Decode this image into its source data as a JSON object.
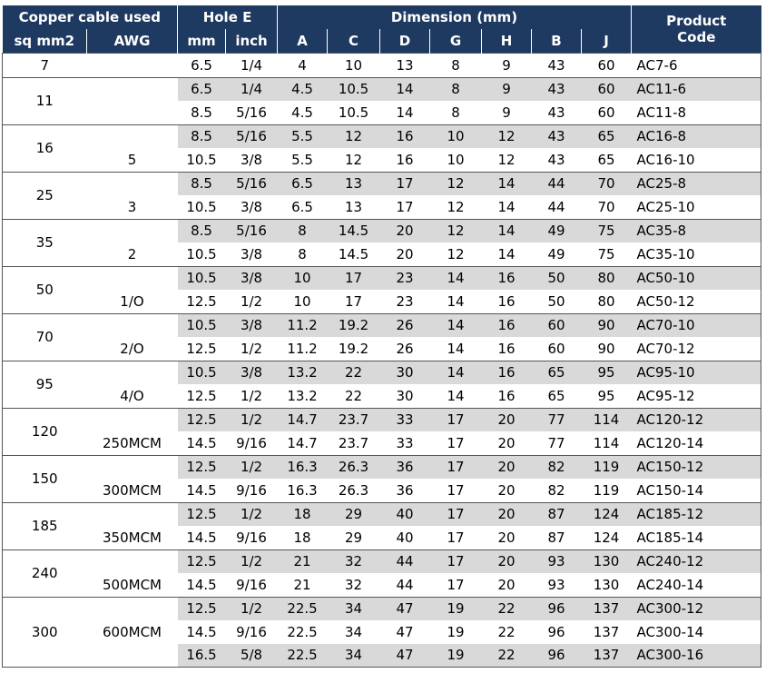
{
  "header": {
    "copper": "Copper cable used",
    "hole": "Hole E",
    "dimension": "Dimension (mm)",
    "product": "Product",
    "code": "Code",
    "columns": [
      "sq mm2",
      "AWG",
      "mm",
      "inch",
      "A",
      "C",
      "D",
      "G",
      "H",
      "B",
      "J"
    ]
  },
  "groups": [
    {
      "sq": "7",
      "rows": [
        [
          "6.5",
          "1/4",
          "4",
          "10",
          "13",
          "8",
          "9",
          "43",
          "60",
          "AC7-6"
        ]
      ]
    },
    {
      "sq": "11",
      "rows": [
        [
          "6.5",
          "1/4",
          "4.5",
          "10.5",
          "14",
          "8",
          "9",
          "43",
          "60",
          "AC11-6"
        ],
        [
          "8.5",
          "5/16",
          "4.5",
          "10.5",
          "14",
          "8",
          "9",
          "43",
          "60",
          "AC11-8"
        ]
      ]
    },
    {
      "sq": "16",
      "awg": "5",
      "rows": [
        [
          "8.5",
          "5/16",
          "5.5",
          "12",
          "16",
          "10",
          "12",
          "43",
          "65",
          "AC16-8"
        ],
        [
          "10.5",
          "3/8",
          "5.5",
          "12",
          "16",
          "10",
          "12",
          "43",
          "65",
          "AC16-10"
        ]
      ]
    },
    {
      "sq": "25",
      "awg": "3",
      "rows": [
        [
          "8.5",
          "5/16",
          "6.5",
          "13",
          "17",
          "12",
          "14",
          "44",
          "70",
          "AC25-8"
        ],
        [
          "10.5",
          "3/8",
          "6.5",
          "13",
          "17",
          "12",
          "14",
          "44",
          "70",
          "AC25-10"
        ]
      ]
    },
    {
      "sq": "35",
      "awg": "2",
      "rows": [
        [
          "8.5",
          "5/16",
          "8",
          "14.5",
          "20",
          "12",
          "14",
          "49",
          "75",
          "AC35-8"
        ],
        [
          "10.5",
          "3/8",
          "8",
          "14.5",
          "20",
          "12",
          "14",
          "49",
          "75",
          "AC35-10"
        ]
      ]
    },
    {
      "sq": "50",
      "awg": "1/O",
      "rows": [
        [
          "10.5",
          "3/8",
          "10",
          "17",
          "23",
          "14",
          "16",
          "50",
          "80",
          "AC50-10"
        ],
        [
          "12.5",
          "1/2",
          "10",
          "17",
          "23",
          "14",
          "16",
          "50",
          "80",
          "AC50-12"
        ]
      ]
    },
    {
      "sq": "70",
      "awg": "2/O",
      "rows": [
        [
          "10.5",
          "3/8",
          "11.2",
          "19.2",
          "26",
          "14",
          "16",
          "60",
          "90",
          "AC70-10"
        ],
        [
          "12.5",
          "1/2",
          "11.2",
          "19.2",
          "26",
          "14",
          "16",
          "60",
          "90",
          "AC70-12"
        ]
      ]
    },
    {
      "sq": "95",
      "awg": "4/O",
      "rows": [
        [
          "10.5",
          "3/8",
          "13.2",
          "22",
          "30",
          "14",
          "16",
          "65",
          "95",
          "AC95-10"
        ],
        [
          "12.5",
          "1/2",
          "13.2",
          "22",
          "30",
          "14",
          "16",
          "65",
          "95",
          "AC95-12"
        ]
      ]
    },
    {
      "sq": "120",
      "awg": "250MCM",
      "rows": [
        [
          "12.5",
          "1/2",
          "14.7",
          "23.7",
          "33",
          "17",
          "20",
          "77",
          "114",
          "AC120-12"
        ],
        [
          "14.5",
          "9/16",
          "14.7",
          "23.7",
          "33",
          "17",
          "20",
          "77",
          "114",
          "AC120-14"
        ]
      ]
    },
    {
      "sq": "150",
      "awg": "300MCM",
      "rows": [
        [
          "12.5",
          "1/2",
          "16.3",
          "26.3",
          "36",
          "17",
          "20",
          "82",
          "119",
          "AC150-12"
        ],
        [
          "14.5",
          "9/16",
          "16.3",
          "26.3",
          "36",
          "17",
          "20",
          "82",
          "119",
          "AC150-14"
        ]
      ]
    },
    {
      "sq": "185",
      "awg": "350MCM",
      "rows": [
        [
          "12.5",
          "1/2",
          "18",
          "29",
          "40",
          "17",
          "20",
          "87",
          "124",
          "AC185-12"
        ],
        [
          "14.5",
          "9/16",
          "18",
          "29",
          "40",
          "17",
          "20",
          "87",
          "124",
          "AC185-14"
        ]
      ]
    },
    {
      "sq": "240",
      "awg": "500MCM",
      "rows": [
        [
          "12.5",
          "1/2",
          "21",
          "32",
          "44",
          "17",
          "20",
          "93",
          "130",
          "AC240-12"
        ],
        [
          "14.5",
          "9/16",
          "21",
          "32",
          "44",
          "17",
          "20",
          "93",
          "130",
          "AC240-14"
        ]
      ]
    },
    {
      "sq": "300",
      "awg": "600MCM",
      "rows": [
        [
          "12.5",
          "1/2",
          "22.5",
          "34",
          "47",
          "19",
          "22",
          "96",
          "137",
          "AC300-12"
        ],
        [
          "14.5",
          "9/16",
          "22.5",
          "34",
          "47",
          "19",
          "22",
          "96",
          "137",
          "AC300-14"
        ],
        [
          "16.5",
          "5/8",
          "22.5",
          "34",
          "47",
          "19",
          "22",
          "96",
          "137",
          "AC300-16"
        ]
      ]
    }
  ]
}
